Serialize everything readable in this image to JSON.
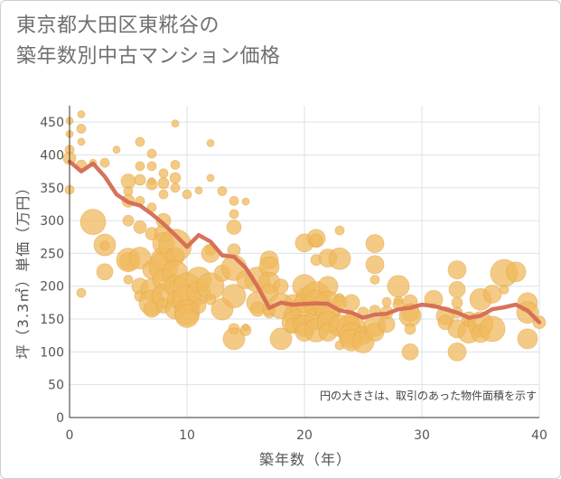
{
  "title_lines": [
    "東京都大田区東糀谷の",
    "築年数別中古マンション価格"
  ],
  "colors": {
    "bubble": "#f0b95e",
    "bubble_stroke": "#e3a648",
    "line": "#d46c55",
    "grid": "#d9e3ec",
    "background": "#ffffff"
  },
  "chart_data": {
    "type": "scatter",
    "title": "東京都大田区東糀谷の築年数別中古マンション価格",
    "xlabel": "築年数（年）",
    "ylabel": "坪（3.3㎡）単価（万円）",
    "xlim": [
      0,
      40
    ],
    "ylim": [
      0,
      475
    ],
    "xticks": [
      0,
      10,
      20,
      30,
      40
    ],
    "yticks": [
      0,
      50,
      100,
      150,
      200,
      250,
      300,
      350,
      400,
      450
    ],
    "grid": true,
    "note": "円の大きさは、取引のあった物件面積を示す",
    "series": [
      {
        "type": "line",
        "x": [
          0,
          1,
          2,
          3,
          4,
          5,
          6,
          7,
          8,
          9,
          10,
          11,
          12,
          13,
          14,
          15,
          16,
          17,
          18,
          19,
          20,
          21,
          22,
          23,
          24,
          25,
          26,
          27,
          28,
          29,
          30,
          31,
          32,
          33,
          34,
          35,
          36,
          37,
          38,
          39,
          40
        ],
        "y": [
          390,
          375,
          387,
          367,
          340,
          328,
          323,
          310,
          295,
          278,
          260,
          278,
          268,
          247,
          245,
          228,
          200,
          167,
          175,
          172,
          173,
          174,
          173,
          163,
          160,
          152,
          157,
          158,
          165,
          167,
          172,
          170,
          165,
          160,
          152,
          155,
          165,
          168,
          172,
          163,
          145
        ]
      },
      {
        "type": "bubble",
        "points": [
          [
            0,
            452,
            4
          ],
          [
            0,
            432,
            4
          ],
          [
            0,
            408,
            5
          ],
          [
            0,
            395,
            7
          ],
          [
            0,
            347,
            5
          ],
          [
            1,
            462,
            4
          ],
          [
            1,
            440,
            5
          ],
          [
            1,
            420,
            4
          ],
          [
            1,
            384,
            6
          ],
          [
            1,
            190,
            5
          ],
          [
            2,
            298,
            14
          ],
          [
            2,
            388,
            4
          ],
          [
            3,
            263,
            12
          ],
          [
            3,
            222,
            9
          ],
          [
            3,
            388,
            5
          ],
          [
            3,
            262,
            5
          ],
          [
            4,
            408,
            4
          ],
          [
            5,
            360,
            8
          ],
          [
            5,
            345,
            5
          ],
          [
            5,
            330,
            7
          ],
          [
            5,
            300,
            6
          ],
          [
            5,
            238,
            10
          ],
          [
            5,
            240,
            13
          ],
          [
            5,
            210,
            5
          ],
          [
            6,
            420,
            5
          ],
          [
            6,
            383,
            5
          ],
          [
            6,
            362,
            6
          ],
          [
            6,
            330,
            5
          ],
          [
            6,
            290,
            7
          ],
          [
            6,
            243,
            12
          ],
          [
            6,
            200,
            9
          ],
          [
            6,
            185,
            6
          ],
          [
            7,
            402,
            5
          ],
          [
            7,
            383,
            5
          ],
          [
            7,
            360,
            4
          ],
          [
            7,
            355,
            6
          ],
          [
            7,
            320,
            5
          ],
          [
            7,
            280,
            7
          ],
          [
            7,
            225,
            10
          ],
          [
            7,
            195,
            12
          ],
          [
            7,
            175,
            14
          ],
          [
            7,
            165,
            9
          ],
          [
            8,
            372,
            5
          ],
          [
            8,
            357,
            6
          ],
          [
            8,
            340,
            5
          ],
          [
            8,
            300,
            8
          ],
          [
            8,
            280,
            10
          ],
          [
            8,
            265,
            12
          ],
          [
            8,
            240,
            14
          ],
          [
            8,
            230,
            16
          ],
          [
            8,
            210,
            12
          ],
          [
            8,
            185,
            13
          ],
          [
            8,
            170,
            8
          ],
          [
            9,
            448,
            4
          ],
          [
            9,
            385,
            5
          ],
          [
            9,
            365,
            6
          ],
          [
            9,
            350,
            5
          ],
          [
            9,
            262,
            18
          ],
          [
            9,
            245,
            10
          ],
          [
            9,
            220,
            14
          ],
          [
            9,
            200,
            12
          ],
          [
            9,
            180,
            9
          ],
          [
            9,
            165,
            11
          ],
          [
            10,
            340,
            5
          ],
          [
            10,
            200,
            15
          ],
          [
            10,
            180,
            16
          ],
          [
            10,
            160,
            14
          ],
          [
            10,
            155,
            13
          ],
          [
            11,
            346,
            4
          ],
          [
            11,
            210,
            14
          ],
          [
            11,
            190,
            13
          ],
          [
            11,
            170,
            8
          ],
          [
            12,
            418,
            4
          ],
          [
            12,
            365,
            4
          ],
          [
            12,
            255,
            6
          ],
          [
            12,
            250,
            10
          ],
          [
            12,
            200,
            15
          ],
          [
            12,
            180,
            6
          ],
          [
            13,
            345,
            5
          ],
          [
            13,
            220,
            9
          ],
          [
            13,
            165,
            12
          ],
          [
            14,
            330,
            5
          ],
          [
            14,
            310,
            5
          ],
          [
            14,
            290,
            8
          ],
          [
            14,
            255,
            7
          ],
          [
            14,
            228,
            14
          ],
          [
            14,
            185,
            13
          ],
          [
            14,
            135,
            6
          ],
          [
            14,
            120,
            12
          ],
          [
            15,
            329,
            4
          ],
          [
            15,
            210,
            10
          ],
          [
            15,
            137,
            4
          ],
          [
            15,
            133,
            6
          ],
          [
            16,
            210,
            14
          ],
          [
            16,
            175,
            12
          ],
          [
            16,
            165,
            8
          ],
          [
            17,
            240,
            10
          ],
          [
            17,
            230,
            11
          ],
          [
            17,
            205,
            12
          ],
          [
            17,
            190,
            10
          ],
          [
            17,
            165,
            7
          ],
          [
            17,
            160,
            6
          ],
          [
            18,
            200,
            8
          ],
          [
            18,
            170,
            14
          ],
          [
            18,
            120,
            12
          ],
          [
            19,
            175,
            9
          ],
          [
            19,
            155,
            10
          ],
          [
            19,
            145,
            12
          ],
          [
            19,
            140,
            8
          ],
          [
            20,
            266,
            10
          ],
          [
            20,
            200,
            13
          ],
          [
            20,
            185,
            9
          ],
          [
            20,
            165,
            15
          ],
          [
            20,
            140,
            12
          ],
          [
            20,
            130,
            10
          ],
          [
            20,
            175,
            11
          ],
          [
            21,
            273,
            10
          ],
          [
            21,
            270,
            7
          ],
          [
            21,
            240,
            6
          ],
          [
            21,
            185,
            16
          ],
          [
            21,
            150,
            12
          ],
          [
            21,
            133,
            13
          ],
          [
            21,
            175,
            14
          ],
          [
            22,
            243,
            10
          ],
          [
            22,
            200,
            11
          ],
          [
            22,
            170,
            16
          ],
          [
            22,
            160,
            13
          ],
          [
            22,
            145,
            12
          ],
          [
            22,
            130,
            10
          ],
          [
            23,
            285,
            5
          ],
          [
            23,
            242,
            12
          ],
          [
            23,
            182,
            5
          ],
          [
            23,
            175,
            8
          ],
          [
            23,
            110,
            5
          ],
          [
            23,
            140,
            12
          ],
          [
            24,
            175,
            9
          ],
          [
            24,
            150,
            8
          ],
          [
            24,
            140,
            10
          ],
          [
            24,
            135,
            16
          ],
          [
            24,
            125,
            14
          ],
          [
            24,
            118,
            12
          ],
          [
            25,
            125,
            10
          ],
          [
            25,
            115,
            12
          ],
          [
            25,
            160,
            6
          ],
          [
            26,
            265,
            10
          ],
          [
            26,
            233,
            10
          ],
          [
            26,
            210,
            5
          ],
          [
            26,
            163,
            6
          ],
          [
            26,
            140,
            12
          ],
          [
            26,
            130,
            10
          ],
          [
            27,
            142,
            9
          ],
          [
            27,
            176,
            5
          ],
          [
            27,
            160,
            7
          ],
          [
            28,
            200,
            12
          ],
          [
            28,
            178,
            5
          ],
          [
            28,
            172,
            6
          ],
          [
            29,
            176,
            8
          ],
          [
            29,
            160,
            10
          ],
          [
            29,
            155,
            12
          ],
          [
            29,
            135,
            6
          ],
          [
            29,
            100,
            9
          ],
          [
            31,
            180,
            10
          ],
          [
            32,
            155,
            10
          ],
          [
            32,
            145,
            8
          ],
          [
            33,
            225,
            10
          ],
          [
            33,
            195,
            9
          ],
          [
            33,
            175,
            6
          ],
          [
            33,
            160,
            6
          ],
          [
            33,
            135,
            10
          ],
          [
            33,
            100,
            10
          ],
          [
            34,
            150,
            8
          ],
          [
            34,
            130,
            12
          ],
          [
            34,
            145,
            5
          ],
          [
            35,
            180,
            12
          ],
          [
            35,
            142,
            14
          ],
          [
            35,
            128,
            10
          ],
          [
            36,
            188,
            10
          ],
          [
            36,
            135,
            14
          ],
          [
            37,
            220,
            15
          ],
          [
            37,
            195,
            5
          ],
          [
            38,
            222,
            11
          ],
          [
            39,
            175,
            11
          ],
          [
            39,
            160,
            12
          ],
          [
            39,
            120,
            11
          ],
          [
            40,
            145,
            7
          ]
        ]
      }
    ]
  }
}
